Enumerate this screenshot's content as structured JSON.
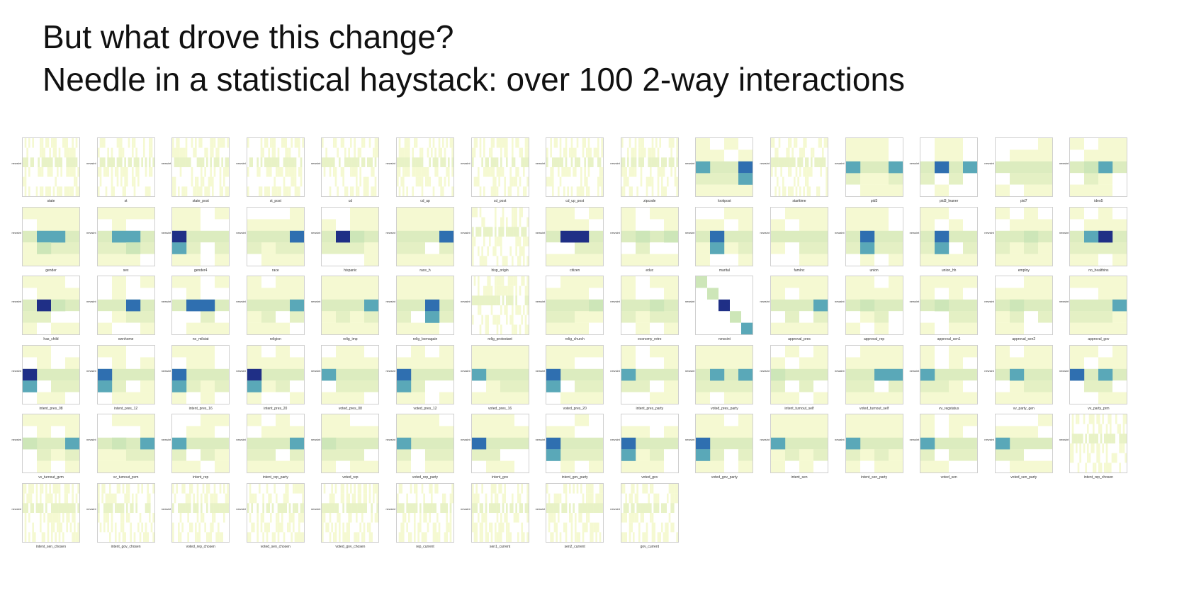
{
  "heading": {
    "line1": "But what drove this change?",
    "line2": "Needle in a statistical haystack: over 100 2-way interactions"
  },
  "colors": {
    "low": "#f5f9d2",
    "mid": "#cde6b8",
    "teal": "#5aa8b8",
    "blue": "#2f6fb0",
    "dark": "#1f2f86"
  },
  "chart_data": {
    "type": "heatmap",
    "ylabel": "newsint",
    "panels": [
      {
        "xlabel": "state",
        "kind": "dense"
      },
      {
        "xlabel": "st",
        "kind": "dense"
      },
      {
        "xlabel": "state_post",
        "kind": "dense"
      },
      {
        "xlabel": "st_post",
        "kind": "dense"
      },
      {
        "xlabel": "cd",
        "kind": "dense"
      },
      {
        "xlabel": "cd_up",
        "kind": "dense"
      },
      {
        "xlabel": "cd_post",
        "kind": "dense"
      },
      {
        "xlabel": "cd_up_post",
        "kind": "dense"
      },
      {
        "xlabel": "zipcode",
        "kind": "dense"
      },
      {
        "xlabel": "lookpost",
        "kind": "block",
        "hot": [
          [
            2,
            3,
            "blue"
          ],
          [
            2,
            0,
            "teal"
          ],
          [
            3,
            3,
            "teal"
          ]
        ]
      },
      {
        "xlabel": "starttime",
        "kind": "dense"
      },
      {
        "xlabel": "pid3",
        "kind": "block",
        "hot": [
          [
            2,
            0,
            "teal"
          ],
          [
            2,
            3,
            "teal"
          ]
        ]
      },
      {
        "xlabel": "pid3_leaner",
        "kind": "block",
        "hot": [
          [
            2,
            1,
            "blue"
          ],
          [
            2,
            3,
            "teal"
          ]
        ]
      },
      {
        "xlabel": "pid7",
        "kind": "block",
        "hot": []
      },
      {
        "xlabel": "ideo5",
        "kind": "block",
        "hot": [
          [
            2,
            2,
            "teal"
          ],
          [
            2,
            1,
            "mid"
          ]
        ]
      },
      {
        "xlabel": "gender",
        "kind": "block",
        "hot": [
          [
            2,
            1,
            "teal"
          ],
          [
            2,
            2,
            "teal"
          ],
          [
            3,
            1,
            "mid"
          ]
        ]
      },
      {
        "xlabel": "sex",
        "kind": "block",
        "hot": [
          [
            2,
            1,
            "teal"
          ],
          [
            2,
            2,
            "teal"
          ],
          [
            3,
            2,
            "mid"
          ]
        ]
      },
      {
        "xlabel": "gender4",
        "kind": "block",
        "hot": [
          [
            2,
            0,
            "dark"
          ],
          [
            3,
            0,
            "teal"
          ]
        ]
      },
      {
        "xlabel": "race",
        "kind": "block",
        "hot": [
          [
            2,
            3,
            "blue"
          ]
        ]
      },
      {
        "xlabel": "hispanic",
        "kind": "block",
        "hot": [
          [
            2,
            1,
            "dark"
          ],
          [
            2,
            2,
            "mid"
          ]
        ]
      },
      {
        "xlabel": "race_h",
        "kind": "block",
        "hot": [
          [
            2,
            3,
            "blue"
          ]
        ]
      },
      {
        "xlabel": "hisp_origin",
        "kind": "dense"
      },
      {
        "xlabel": "citizen",
        "kind": "block",
        "hot": [
          [
            2,
            1,
            "dark"
          ],
          [
            2,
            2,
            "dark"
          ]
        ]
      },
      {
        "xlabel": "educ",
        "kind": "block",
        "hot": [
          [
            2,
            1,
            "mid"
          ],
          [
            2,
            3,
            "mid"
          ]
        ]
      },
      {
        "xlabel": "marital",
        "kind": "block",
        "hot": [
          [
            2,
            1,
            "blue"
          ],
          [
            3,
            1,
            "teal"
          ]
        ]
      },
      {
        "xlabel": "famInc",
        "kind": "block",
        "hot": []
      },
      {
        "xlabel": "union",
        "kind": "block",
        "hot": [
          [
            2,
            1,
            "blue"
          ],
          [
            3,
            1,
            "teal"
          ]
        ]
      },
      {
        "xlabel": "union_hh",
        "kind": "block",
        "hot": [
          [
            2,
            1,
            "blue"
          ],
          [
            3,
            1,
            "teal"
          ]
        ]
      },
      {
        "xlabel": "employ",
        "kind": "block",
        "hot": [
          [
            2,
            2,
            "mid"
          ]
        ]
      },
      {
        "xlabel": "no_healthins",
        "kind": "block",
        "hot": [
          [
            2,
            2,
            "dark"
          ],
          [
            2,
            1,
            "teal"
          ]
        ]
      },
      {
        "xlabel": "has_child",
        "kind": "block",
        "hot": [
          [
            2,
            1,
            "dark"
          ],
          [
            2,
            2,
            "mid"
          ]
        ]
      },
      {
        "xlabel": "ownhome",
        "kind": "block",
        "hot": [
          [
            2,
            2,
            "blue"
          ]
        ]
      },
      {
        "xlabel": "no_milstat",
        "kind": "block",
        "hot": [
          [
            2,
            1,
            "blue"
          ],
          [
            2,
            2,
            "blue"
          ]
        ]
      },
      {
        "xlabel": "religion",
        "kind": "block",
        "hot": [
          [
            2,
            3,
            "teal"
          ]
        ]
      },
      {
        "xlabel": "relig_imp",
        "kind": "block",
        "hot": [
          [
            2,
            3,
            "teal"
          ]
        ]
      },
      {
        "xlabel": "relig_bornagain",
        "kind": "block",
        "hot": [
          [
            2,
            2,
            "blue"
          ],
          [
            3,
            2,
            "teal"
          ]
        ]
      },
      {
        "xlabel": "relig_protestant",
        "kind": "dense"
      },
      {
        "xlabel": "relig_church",
        "kind": "block",
        "hot": [
          [
            2,
            3,
            "mid"
          ]
        ]
      },
      {
        "xlabel": "economy_retro",
        "kind": "block",
        "hot": [
          [
            2,
            2,
            "mid"
          ]
        ]
      },
      {
        "xlabel": "newsint",
        "kind": "diag"
      },
      {
        "xlabel": "approval_pres",
        "kind": "block",
        "hot": [
          [
            2,
            3,
            "teal"
          ]
        ]
      },
      {
        "xlabel": "approval_rep",
        "kind": "block",
        "hot": [
          [
            2,
            1,
            "mid"
          ]
        ]
      },
      {
        "xlabel": "approval_sen1",
        "kind": "block",
        "hot": [
          [
            2,
            1,
            "mid"
          ]
        ]
      },
      {
        "xlabel": "approval_sen2",
        "kind": "block",
        "hot": [
          [
            2,
            1,
            "mid"
          ]
        ]
      },
      {
        "xlabel": "approval_gov",
        "kind": "block",
        "hot": [
          [
            2,
            3,
            "teal"
          ]
        ]
      },
      {
        "xlabel": "intent_pres_08",
        "kind": "block",
        "hot": [
          [
            2,
            0,
            "dark"
          ],
          [
            3,
            0,
            "teal"
          ]
        ]
      },
      {
        "xlabel": "intent_pres_12",
        "kind": "block",
        "hot": [
          [
            2,
            0,
            "blue"
          ],
          [
            3,
            0,
            "teal"
          ]
        ]
      },
      {
        "xlabel": "intent_pres_16",
        "kind": "block",
        "hot": [
          [
            2,
            0,
            "blue"
          ],
          [
            3,
            0,
            "teal"
          ]
        ]
      },
      {
        "xlabel": "intent_pres_20",
        "kind": "block",
        "hot": [
          [
            2,
            0,
            "dark"
          ],
          [
            3,
            0,
            "teal"
          ]
        ]
      },
      {
        "xlabel": "voted_pres_08",
        "kind": "block",
        "hot": [
          [
            2,
            0,
            "teal"
          ]
        ]
      },
      {
        "xlabel": "voted_pres_12",
        "kind": "block",
        "hot": [
          [
            2,
            0,
            "blue"
          ],
          [
            3,
            0,
            "teal"
          ]
        ]
      },
      {
        "xlabel": "voted_pres_16",
        "kind": "block",
        "hot": [
          [
            2,
            0,
            "teal"
          ]
        ]
      },
      {
        "xlabel": "voted_pres_20",
        "kind": "block",
        "hot": [
          [
            2,
            0,
            "blue"
          ],
          [
            3,
            0,
            "teal"
          ]
        ]
      },
      {
        "xlabel": "intent_pres_party",
        "kind": "block",
        "hot": [
          [
            2,
            0,
            "teal"
          ]
        ]
      },
      {
        "xlabel": "voted_pres_party",
        "kind": "block",
        "hot": [
          [
            2,
            1,
            "teal"
          ],
          [
            2,
            3,
            "teal"
          ]
        ]
      },
      {
        "xlabel": "intent_turnout_self",
        "kind": "block",
        "hot": [
          [
            2,
            0,
            "mid"
          ]
        ]
      },
      {
        "xlabel": "voted_turnout_self",
        "kind": "block",
        "hot": [
          [
            2,
            2,
            "teal"
          ],
          [
            2,
            3,
            "teal"
          ]
        ]
      },
      {
        "xlabel": "vv_regstatus",
        "kind": "block",
        "hot": [
          [
            2,
            0,
            "teal"
          ]
        ]
      },
      {
        "xlabel": "vv_party_gen",
        "kind": "block",
        "hot": [
          [
            2,
            1,
            "teal"
          ]
        ]
      },
      {
        "xlabel": "vv_party_prm",
        "kind": "block",
        "hot": [
          [
            2,
            0,
            "blue"
          ],
          [
            2,
            2,
            "teal"
          ]
        ]
      },
      {
        "xlabel": "vv_turnout_gvm",
        "kind": "block",
        "hot": [
          [
            2,
            3,
            "teal"
          ],
          [
            2,
            0,
            "mid"
          ]
        ]
      },
      {
        "xlabel": "vv_turnout_pvm",
        "kind": "block",
        "hot": [
          [
            2,
            1,
            "mid"
          ],
          [
            2,
            3,
            "teal"
          ]
        ]
      },
      {
        "xlabel": "intent_rep",
        "kind": "block",
        "hot": [
          [
            2,
            0,
            "teal"
          ]
        ]
      },
      {
        "xlabel": "intent_rep_party",
        "kind": "block",
        "hot": [
          [
            2,
            3,
            "teal"
          ]
        ]
      },
      {
        "xlabel": "voted_rep",
        "kind": "block",
        "hot": [
          [
            2,
            0,
            "mid"
          ]
        ]
      },
      {
        "xlabel": "voted_rep_party",
        "kind": "block",
        "hot": [
          [
            2,
            0,
            "teal"
          ]
        ]
      },
      {
        "xlabel": "intent_gov",
        "kind": "block",
        "hot": [
          [
            2,
            0,
            "blue"
          ]
        ]
      },
      {
        "xlabel": "intent_gov_party",
        "kind": "block",
        "hot": [
          [
            2,
            0,
            "blue"
          ],
          [
            3,
            0,
            "teal"
          ]
        ]
      },
      {
        "xlabel": "voted_gov",
        "kind": "block",
        "hot": [
          [
            2,
            0,
            "blue"
          ],
          [
            3,
            0,
            "teal"
          ]
        ]
      },
      {
        "xlabel": "voted_gov_party",
        "kind": "block",
        "hot": [
          [
            2,
            0,
            "blue"
          ],
          [
            3,
            0,
            "teal"
          ]
        ]
      },
      {
        "xlabel": "intent_sen",
        "kind": "block",
        "hot": [
          [
            2,
            0,
            "teal"
          ]
        ]
      },
      {
        "xlabel": "intent_sen_party",
        "kind": "block",
        "hot": [
          [
            2,
            0,
            "teal"
          ]
        ]
      },
      {
        "xlabel": "voted_sen",
        "kind": "block",
        "hot": [
          [
            2,
            0,
            "teal"
          ]
        ]
      },
      {
        "xlabel": "voted_sen_party",
        "kind": "block",
        "hot": [
          [
            2,
            0,
            "teal"
          ]
        ]
      },
      {
        "xlabel": "intent_rep_chosen",
        "kind": "dense"
      },
      {
        "xlabel": "intent_sen_chosen",
        "kind": "dense"
      },
      {
        "xlabel": "intent_gov_chosen",
        "kind": "dense"
      },
      {
        "xlabel": "voted_rep_chosen",
        "kind": "dense"
      },
      {
        "xlabel": "voted_sen_chosen",
        "kind": "dense"
      },
      {
        "xlabel": "voted_gov_chosen",
        "kind": "dense"
      },
      {
        "xlabel": "rep_current",
        "kind": "dense"
      },
      {
        "xlabel": "sen1_current",
        "kind": "dense"
      },
      {
        "xlabel": "sen2_current",
        "kind": "dense"
      },
      {
        "xlabel": "gov_current",
        "kind": "dense"
      }
    ]
  }
}
